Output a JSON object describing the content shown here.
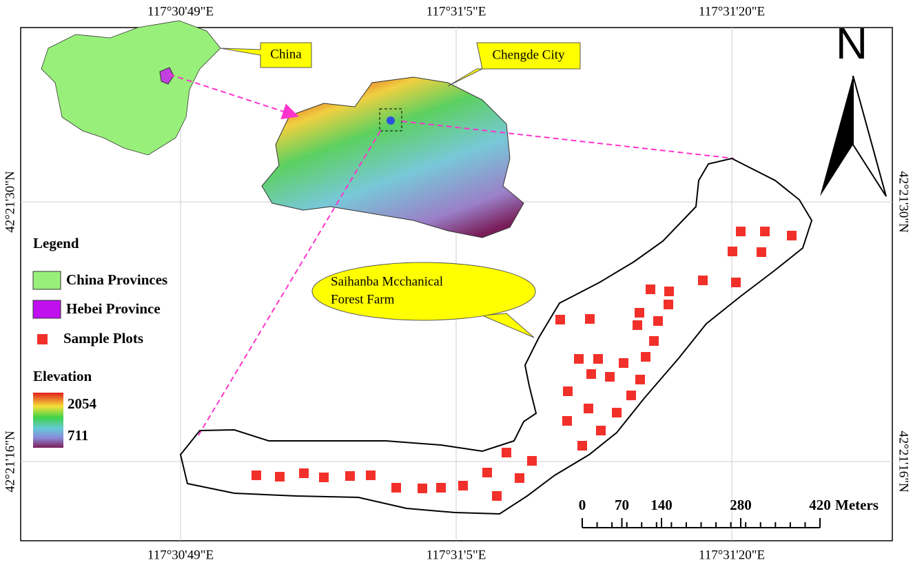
{
  "map": {
    "top_labels": [
      "117°30'49\"E",
      "117°31'5\"E",
      "117°31'20\"E"
    ],
    "bottom_labels": [
      "117°30'49\"E",
      "117°31'5\"E",
      "117°31'20\"E"
    ],
    "left_labels": [
      "42°21'30\"N",
      "42°21'16\"N"
    ],
    "right_labels": [
      "42°21'30\"N",
      "42°21'16\"N"
    ]
  },
  "callouts": {
    "china": "China",
    "chengde": "Chengde City",
    "farm": [
      "Saihanba Mcchanical",
      "Forest Farm"
    ]
  },
  "legend": {
    "title": "Legend",
    "items": [
      "China Provinces",
      "Hebei Province",
      "Sample Plots"
    ]
  },
  "elevation": {
    "title": "Elevation",
    "max": 2054,
    "min": 711
  },
  "scale_bar": {
    "ticks": [
      0,
      70,
      140,
      280,
      420
    ],
    "unit": "Meters"
  },
  "north": "N"
}
